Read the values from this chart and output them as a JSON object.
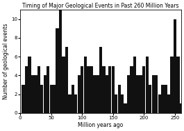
{
  "title": "Timing of Major Geological Events in Past 260 Million Years",
  "xlabel": "Million years ago",
  "ylabel": "Number of geological events",
  "xlim": [
    0,
    260
  ],
  "ylim": [
    0,
    11
  ],
  "yticks": [
    0,
    2,
    4,
    6,
    8,
    10
  ],
  "xticks": [
    0,
    50,
    100,
    150,
    200,
    250
  ],
  "bar_centers": [
    5,
    10,
    15,
    20,
    25,
    30,
    35,
    40,
    45,
    50,
    55,
    60,
    65,
    70,
    75,
    80,
    85,
    90,
    95,
    100,
    105,
    110,
    115,
    120,
    125,
    130,
    135,
    140,
    145,
    150,
    155,
    160,
    165,
    170,
    175,
    180,
    185,
    190,
    195,
    200,
    205,
    210,
    215,
    220,
    225,
    230,
    235,
    240,
    245,
    250,
    255,
    260
  ],
  "bar_heights": [
    3,
    5,
    6,
    4,
    4,
    5,
    3,
    4,
    5,
    3,
    3,
    9,
    11,
    6,
    7,
    2,
    3,
    2,
    4,
    5,
    6,
    5,
    5,
    4,
    4,
    7,
    5,
    4,
    5,
    5,
    2,
    3,
    2,
    1,
    4,
    5,
    6,
    4,
    4,
    5,
    6,
    3,
    4,
    4,
    2,
    3,
    3,
    2,
    6,
    10,
    6,
    1
  ],
  "bar_width": 4.8,
  "bar_color": "#111111",
  "background_color": "#ffffff",
  "title_fontsize": 5.5,
  "axis_fontsize": 5.5,
  "tick_fontsize": 5.0
}
